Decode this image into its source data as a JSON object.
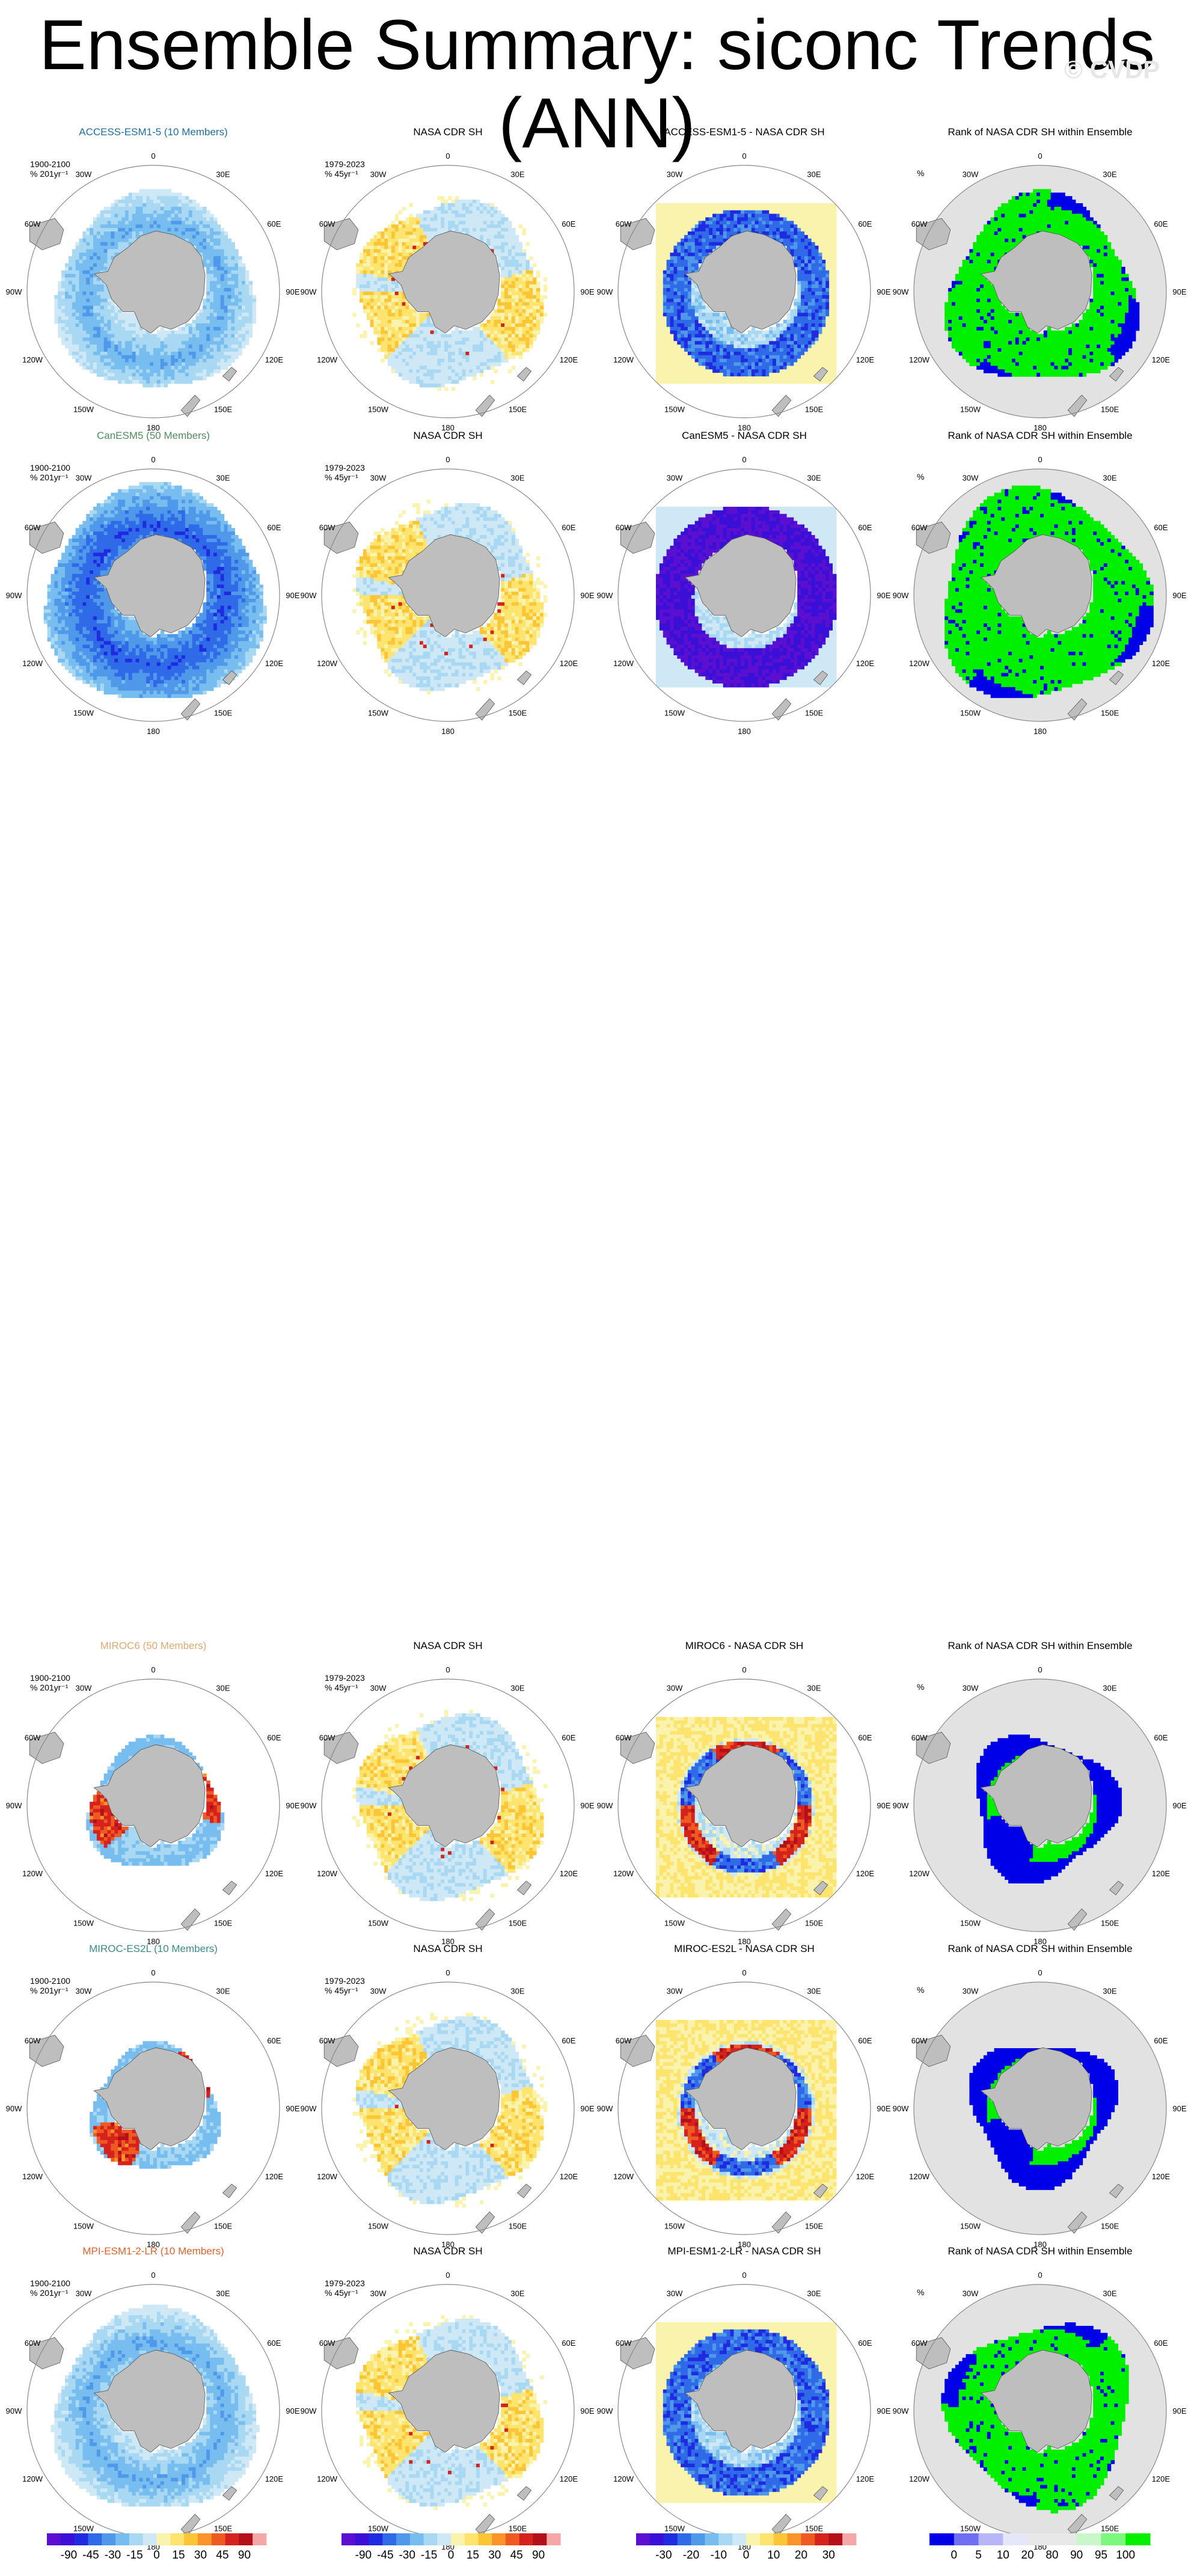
{
  "title": "Ensemble Summary: siconc Trends (ANN)",
  "watermark": "© CVDP",
  "colors": {
    "land": "#bebebe",
    "ocean_bg": "#ffffff",
    "rank_bg": "#e2e2e2",
    "trend_scale": [
      "#5b0fd1",
      "#3a10d8",
      "#1f2be0",
      "#2f6ae8",
      "#4f98ea",
      "#78bdef",
      "#a9d8f3",
      "#cfe8f6",
      "#f9f3ad",
      "#fde46e",
      "#fcc536",
      "#f9932a",
      "#ef5a23",
      "#d6221c",
      "#b3101a",
      "#f5a7a7"
    ],
    "rank_scale": [
      "#0000e8",
      "#6f6ff4",
      "#b6b6f8",
      "#e6e6fb",
      "#e8e8e8",
      "#e8e8e8",
      "#c9f7c9",
      "#7cf97c",
      "#00f000"
    ]
  },
  "longitude_labels": [
    "0",
    "30E",
    "60E",
    "90E",
    "120E",
    "150E",
    "180",
    "150W",
    "120W",
    "90W",
    "60W",
    "30W"
  ],
  "rows": [
    {
      "model": "ACCESS-ESM1-5 (10 Members)",
      "model_color": "#1d6ea3",
      "model_period": "1900-2100",
      "model_units": "% 201yr⁻¹",
      "model_units_base": "% 201yr",
      "obs_title": "NASA CDR SH",
      "obs_period": "1979-2023",
      "obs_units": "% 45yr⁻¹",
      "obs_units_base": "% 45yr",
      "diff_title": "ACCESS-ESM1-5 - NASA CDR SH",
      "rank_title": "Rank of NASA CDR SH within Ensemble",
      "rank_units": "%"
    },
    {
      "model": "CanESM5 (50 Members)",
      "model_color": "#4f8b5b",
      "model_period": "1900-2100",
      "model_units": "% 201yr⁻¹",
      "model_units_base": "% 201yr",
      "obs_title": "NASA CDR SH",
      "obs_period": "1979-2023",
      "obs_units": "% 45yr⁻¹",
      "obs_units_base": "% 45yr",
      "diff_title": "CanESM5 - NASA CDR SH",
      "rank_title": "Rank of NASA CDR SH within Ensemble",
      "rank_units": "%"
    },
    {
      "model": "MIROC6 (50 Members)",
      "model_color": "#e0a96d",
      "model_period": "1900-2100",
      "model_units": "% 201yr⁻¹",
      "model_units_base": "% 201yr",
      "obs_title": "NASA CDR SH",
      "obs_period": "1979-2023",
      "obs_units": "% 45yr⁻¹",
      "obs_units_base": "% 45yr",
      "diff_title": "MIROC6 - NASA CDR SH",
      "rank_title": "Rank of NASA CDR SH within Ensemble",
      "rank_units": "%"
    },
    {
      "model": "MIROC-ES2L (10 Members)",
      "model_color": "#3b8a8a",
      "model_period": "1900-2100",
      "model_units": "% 201yr⁻¹",
      "model_units_base": "% 201yr",
      "obs_title": "NASA CDR SH",
      "obs_period": "1979-2023",
      "obs_units": "% 45yr⁻¹",
      "obs_units_base": "% 45yr",
      "diff_title": "MIROC-ES2L - NASA CDR SH",
      "rank_title": "Rank of NASA CDR SH within Ensemble",
      "rank_units": "%"
    },
    {
      "model": "MPI-ESM1-2-LR (10 Members)",
      "model_color": "#e0622a",
      "model_period": "1900-2100",
      "model_units": "% 201yr⁻¹",
      "model_units_base": "% 201yr",
      "obs_title": "NASA CDR SH",
      "obs_period": "1979-2023",
      "obs_units": "% 45yr⁻¹",
      "obs_units_base": "% 45yr",
      "diff_title": "MPI-ESM1-2-LR - NASA CDR SH",
      "rank_title": "Rank of NASA CDR SH within Ensemble",
      "rank_units": "%"
    }
  ],
  "chart_data": {
    "type": "heatmap",
    "title": "Ensemble Summary: siconc Trends (ANN)",
    "projection": "south polar stereographic",
    "colorbars": [
      {
        "panel": "model trend",
        "labels": [
          "-90",
          "-45",
          "-30",
          "-15",
          "0",
          "15",
          "30",
          "45",
          "90"
        ]
      },
      {
        "panel": "observed trend",
        "labels": [
          "-90",
          "-45",
          "-30",
          "-15",
          "0",
          "15",
          "30",
          "45",
          "90"
        ]
      },
      {
        "panel": "difference",
        "labels": [
          "-30",
          "-20",
          "-10",
          "0",
          "10",
          "20",
          "30"
        ]
      },
      {
        "panel": "rank",
        "labels": [
          "0",
          "5",
          "10",
          "20",
          "80",
          "90",
          "95",
          "100"
        ]
      }
    ]
  }
}
